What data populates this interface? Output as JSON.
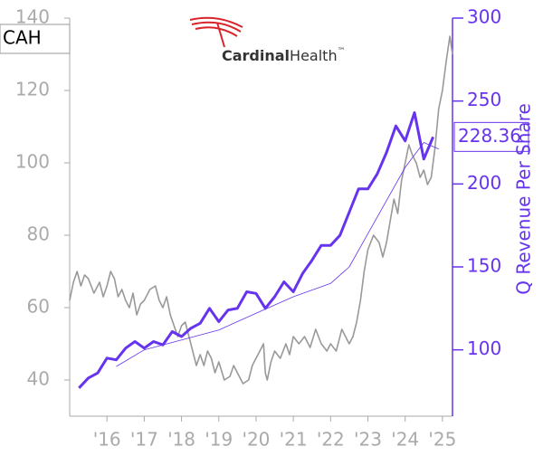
{
  "chart_data": {
    "type": "line",
    "ticker": "CAH",
    "logo": {
      "brand": "Cardinal",
      "suffix": "Health",
      "mark": "™"
    },
    "y2label": "Q Revenue Per Share",
    "xlim": [
      2015.0,
      2025.27
    ],
    "xticks": [
      {
        "value": 2016,
        "label": "'16"
      },
      {
        "value": 2017,
        "label": "'17"
      },
      {
        "value": 2018,
        "label": "'18"
      },
      {
        "value": 2019,
        "label": "'19"
      },
      {
        "value": 2020,
        "label": "'20"
      },
      {
        "value": 2021,
        "label": "'21"
      },
      {
        "value": 2022,
        "label": "'22"
      },
      {
        "value": 2023,
        "label": "'23"
      },
      {
        "value": 2024,
        "label": "'24"
      },
      {
        "value": 2025,
        "label": "'25"
      }
    ],
    "ylim": [
      30,
      140
    ],
    "yticks": [
      40,
      60,
      80,
      100,
      120,
      140
    ],
    "y2lim": [
      60,
      300
    ],
    "y2ticks": [
      100,
      150,
      200,
      250,
      300
    ],
    "series": [
      {
        "color": "#999999",
        "width": 1.6,
        "x": [
          2015.0,
          2015.1,
          2015.2,
          2015.3,
          2015.4,
          2015.5,
          2015.65,
          2015.8,
          2015.9,
          2016.0,
          2016.1,
          2016.2,
          2016.3,
          2016.4,
          2016.5,
          2016.6,
          2016.7,
          2016.8,
          2016.9,
          2017.0,
          2017.15,
          2017.3,
          2017.4,
          2017.5,
          2017.6,
          2017.7,
          2017.8,
          2017.9,
          2018.0,
          2018.1,
          2018.2,
          2018.3,
          2018.4,
          2018.5,
          2018.6,
          2018.7,
          2018.8,
          2018.9,
          2019.0,
          2019.15,
          2019.3,
          2019.4,
          2019.5,
          2019.65,
          2019.8,
          2019.9,
          2020.0,
          2020.1,
          2020.2,
          2020.25,
          2020.3,
          2020.4,
          2020.5,
          2020.65,
          2020.8,
          2020.9,
          2021.0,
          2021.15,
          2021.3,
          2021.45,
          2021.6,
          2021.75,
          2021.9,
          2022.0,
          2022.15,
          2022.3,
          2022.4,
          2022.5,
          2022.6,
          2022.7,
          2022.8,
          2022.9,
          2023.0,
          2023.15,
          2023.3,
          2023.4,
          2023.5,
          2023.6,
          2023.7,
          2023.8,
          2023.9,
          2024.0,
          2024.1,
          2024.2,
          2024.3,
          2024.4,
          2024.5,
          2024.6,
          2024.7,
          2024.8,
          2024.9,
          2025.0,
          2025.1,
          2025.2,
          2025.27
        ],
        "values": [
          62,
          67,
          70,
          66,
          69,
          68,
          64,
          67,
          63,
          66,
          70,
          68,
          63,
          65,
          62,
          60,
          64,
          58,
          61,
          62,
          65,
          66,
          62,
          60,
          63,
          58,
          55,
          52,
          55,
          56,
          52,
          48,
          44,
          47,
          44,
          48,
          46,
          42,
          45,
          40,
          41,
          44,
          42,
          39,
          40,
          44,
          46,
          48,
          50,
          42,
          40,
          45,
          48,
          46,
          50,
          47,
          52,
          50,
          52,
          49,
          54,
          50,
          48,
          50,
          48,
          54,
          52,
          50,
          52,
          56,
          62,
          70,
          76,
          80,
          78,
          74,
          78,
          84,
          90,
          86,
          95,
          100,
          105,
          102,
          100,
          96,
          98,
          94,
          96,
          104,
          115,
          120,
          128,
          135,
          130
        ]
      },
      {
        "color": "#6633ee",
        "width": 3,
        "axis": "y2",
        "x": [
          2015.25,
          2015.5,
          2015.75,
          2016.0,
          2016.25,
          2016.5,
          2016.75,
          2017.0,
          2017.25,
          2017.5,
          2017.75,
          2018.0,
          2018.25,
          2018.5,
          2018.75,
          2019.0,
          2019.25,
          2019.5,
          2019.75,
          2020.0,
          2020.25,
          2020.5,
          2020.75,
          2021.0,
          2021.25,
          2021.5,
          2021.75,
          2022.0,
          2022.25,
          2022.5,
          2022.75,
          2023.0,
          2023.25,
          2023.5,
          2023.75,
          2024.0,
          2024.25,
          2024.5,
          2024.75
        ],
        "values": [
          77,
          83,
          86,
          95,
          94,
          101,
          105,
          101,
          105,
          103,
          111,
          108,
          113,
          116,
          125,
          117,
          124,
          125,
          135,
          134,
          125,
          132,
          141,
          135,
          146,
          154,
          163,
          163,
          169,
          183,
          197,
          197,
          206,
          219,
          235,
          226,
          243,
          215,
          228.36
        ]
      },
      {
        "color": "#6633ee",
        "width": 0.8,
        "axis": "y2",
        "x": [
          2016.25,
          2017.0,
          2018.0,
          2019.0,
          2020.0,
          2021.0,
          2022.0,
          2022.5,
          2023.0,
          2023.5,
          2024.0,
          2024.5,
          2024.9
        ],
        "values": [
          90,
          100,
          106,
          112,
          122,
          132,
          140,
          150,
          170,
          190,
          210,
          225,
          221
        ]
      }
    ]
  }
}
